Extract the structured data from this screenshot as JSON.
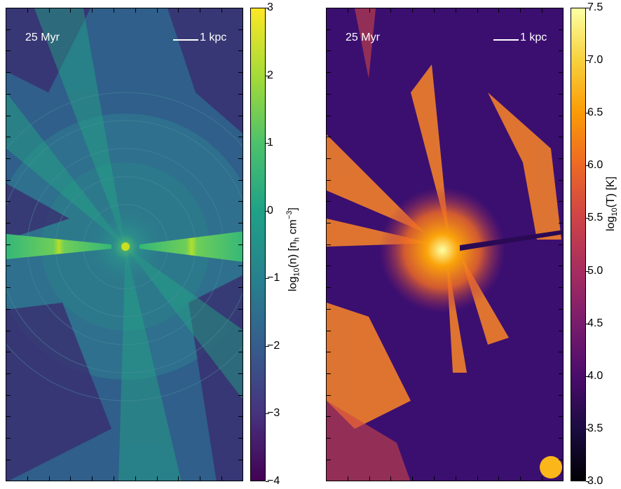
{
  "panels": [
    {
      "time_label": "25 Myr",
      "scale_label": "1 kpc",
      "colormap": "viridis",
      "colorbar": {
        "label_main": "log",
        "label_sub": "10",
        "label_rest": "(n) [n",
        "label_sub2": "h",
        "label_rest2": " cm",
        "label_sup": "−3",
        "label_end": "]",
        "ticks": [
          "3",
          "2",
          "1",
          "0",
          "−1",
          "−2",
          "−3",
          "−4"
        ],
        "range": [
          -4,
          3
        ],
        "colors": [
          "#440154",
          "#46327e",
          "#365c8d",
          "#277f8e",
          "#1fa187",
          "#4ac16d",
          "#a0da39",
          "#fde725"
        ]
      }
    },
    {
      "time_label": "25 Myr",
      "scale_label": "1 kpc",
      "colormap": "inferno",
      "colorbar": {
        "label_main": "log",
        "label_sub": "10",
        "label_rest": "(T) [K]",
        "ticks": [
          "7.5",
          "7.0",
          "6.5",
          "6.0",
          "5.5",
          "5.0",
          "4.5",
          "4.0",
          "3.5",
          "3.0"
        ],
        "range": [
          3.0,
          7.5
        ],
        "colors": [
          "#000004",
          "#1b0c41",
          "#4a0c6b",
          "#781c6d",
          "#a52c60",
          "#cf4446",
          "#ed6925",
          "#fb9b06",
          "#f7d13d",
          "#fcffa4"
        ]
      }
    }
  ]
}
